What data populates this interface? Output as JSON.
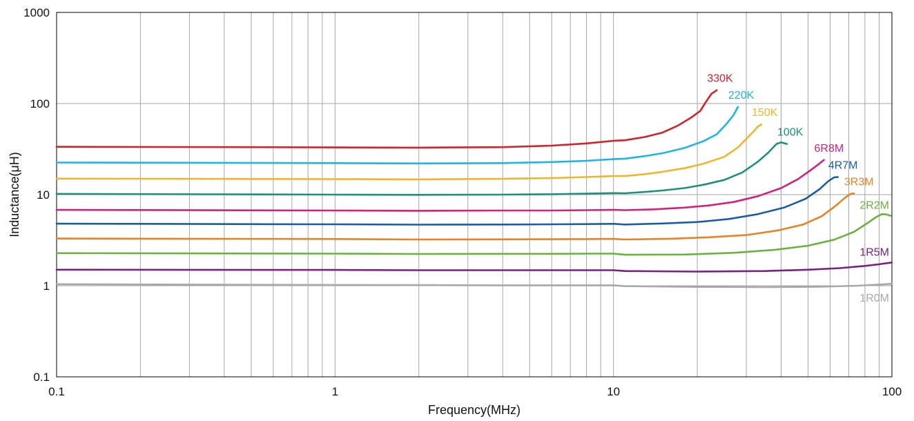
{
  "chart_data": {
    "type": "line",
    "title": "",
    "xlabel": "Frequency(MHz)",
    "ylabel": "Inductance(μH)",
    "xscale": "log",
    "yscale": "log",
    "xlim": [
      0.1,
      100
    ],
    "ylim": [
      0.1,
      1000
    ],
    "grid": true,
    "x_tick_labels": [
      "0.1",
      "1",
      "10",
      "100"
    ],
    "y_tick_labels": [
      "0.1",
      "1",
      "10",
      "100",
      "1000"
    ],
    "series": [
      {
        "name": "330K",
        "color": "#d42027",
        "points": [
          [
            0.1,
            33.5
          ],
          [
            0.5,
            33.2
          ],
          [
            1,
            33
          ],
          [
            2,
            32.8
          ],
          [
            4,
            33.2
          ],
          [
            6,
            34.5
          ],
          [
            8,
            36.5
          ],
          [
            10,
            39
          ],
          [
            11,
            39.5
          ],
          [
            13,
            43
          ],
          [
            15,
            48
          ],
          [
            17,
            57
          ],
          [
            19,
            70
          ],
          [
            20.5,
            83
          ],
          [
            21.5,
            105
          ],
          [
            22.5,
            128
          ],
          [
            23.5,
            140
          ]
        ]
      },
      {
        "name": "220K",
        "color": "#1cb5e8",
        "points": [
          [
            0.1,
            22.5
          ],
          [
            1,
            22.2
          ],
          [
            2,
            22
          ],
          [
            4,
            22.2
          ],
          [
            6,
            22.8
          ],
          [
            8,
            23.5
          ],
          [
            10,
            24.5
          ],
          [
            11,
            24.8
          ],
          [
            13,
            26.5
          ],
          [
            15,
            28.5
          ],
          [
            18,
            32.5
          ],
          [
            21,
            38.5
          ],
          [
            23.5,
            46
          ],
          [
            25.5,
            60
          ],
          [
            27,
            75
          ],
          [
            28,
            92
          ]
        ]
      },
      {
        "name": "150K",
        "color": "#f0b52a",
        "points": [
          [
            0.1,
            15
          ],
          [
            1,
            14.8
          ],
          [
            2,
            14.7
          ],
          [
            4,
            14.9
          ],
          [
            6,
            15.2
          ],
          [
            8,
            15.6
          ],
          [
            10,
            16
          ],
          [
            11,
            16
          ],
          [
            13,
            16.8
          ],
          [
            15,
            17.8
          ],
          [
            18,
            19.5
          ],
          [
            21,
            21.8
          ],
          [
            25,
            26
          ],
          [
            28,
            33
          ],
          [
            30,
            41
          ],
          [
            32,
            50
          ],
          [
            33,
            56
          ],
          [
            34,
            59
          ]
        ]
      },
      {
        "name": "100K",
        "color": "#1a9178",
        "points": [
          [
            0.1,
            10.2
          ],
          [
            1,
            10
          ],
          [
            2,
            9.95
          ],
          [
            4,
            10
          ],
          [
            6,
            10.1
          ],
          [
            8,
            10.25
          ],
          [
            10,
            10.4
          ],
          [
            11,
            10.35
          ],
          [
            13,
            10.7
          ],
          [
            15,
            11.1
          ],
          [
            18,
            11.8
          ],
          [
            21,
            12.8
          ],
          [
            25,
            14.5
          ],
          [
            29,
            17.5
          ],
          [
            33,
            23
          ],
          [
            36,
            29
          ],
          [
            38.5,
            36
          ],
          [
            40,
            37.5
          ],
          [
            42,
            36
          ]
        ]
      },
      {
        "name": "6R8M",
        "color": "#d4207a",
        "points": [
          [
            0.1,
            6.8
          ],
          [
            1,
            6.7
          ],
          [
            2,
            6.65
          ],
          [
            4,
            6.7
          ],
          [
            6,
            6.7
          ],
          [
            8,
            6.75
          ],
          [
            10,
            6.8
          ],
          [
            11,
            6.75
          ],
          [
            14,
            6.9
          ],
          [
            18,
            7.2
          ],
          [
            22,
            7.6
          ],
          [
            27,
            8.3
          ],
          [
            33,
            9.6
          ],
          [
            40,
            11.8
          ],
          [
            46,
            14.8
          ],
          [
            51,
            18.5
          ],
          [
            55,
            22
          ],
          [
            57,
            24
          ]
        ]
      },
      {
        "name": "4R7M",
        "color": "#1a5da6",
        "points": [
          [
            0.1,
            4.8
          ],
          [
            1,
            4.72
          ],
          [
            2,
            4.68
          ],
          [
            4,
            4.7
          ],
          [
            6,
            4.72
          ],
          [
            8,
            4.75
          ],
          [
            10,
            4.78
          ],
          [
            11,
            4.7
          ],
          [
            15,
            4.82
          ],
          [
            20,
            5
          ],
          [
            26,
            5.4
          ],
          [
            33,
            6.1
          ],
          [
            41,
            7.2
          ],
          [
            49,
            9
          ],
          [
            55,
            11.5
          ],
          [
            59,
            14
          ],
          [
            62,
            15.5
          ],
          [
            64,
            15.6
          ]
        ]
      },
      {
        "name": "3R3M",
        "color": "#e98222",
        "points": [
          [
            0.1,
            3.3
          ],
          [
            1,
            3.26
          ],
          [
            2,
            3.22
          ],
          [
            4,
            3.23
          ],
          [
            6,
            3.24
          ],
          [
            8,
            3.25
          ],
          [
            10,
            3.27
          ],
          [
            11,
            3.22
          ],
          [
            16,
            3.28
          ],
          [
            22,
            3.4
          ],
          [
            30,
            3.6
          ],
          [
            39,
            4.05
          ],
          [
            48,
            4.7
          ],
          [
            56,
            5.8
          ],
          [
            63,
            7.6
          ],
          [
            68,
            9.3
          ],
          [
            71,
            10.2
          ],
          [
            73,
            10.3
          ]
        ]
      },
      {
        "name": "2R2M",
        "color": "#6ab23c",
        "points": [
          [
            0.1,
            2.28
          ],
          [
            1,
            2.25
          ],
          [
            2,
            2.23
          ],
          [
            4,
            2.24
          ],
          [
            6,
            2.24
          ],
          [
            8,
            2.25
          ],
          [
            10,
            2.25
          ],
          [
            11,
            2.19
          ],
          [
            18,
            2.2
          ],
          [
            27,
            2.3
          ],
          [
            38,
            2.48
          ],
          [
            50,
            2.75
          ],
          [
            62,
            3.2
          ],
          [
            73,
            3.9
          ],
          [
            82,
            4.9
          ],
          [
            88,
            5.7
          ],
          [
            92,
            6.1
          ],
          [
            96,
            6.05
          ],
          [
            99,
            5.85
          ]
        ]
      },
      {
        "name": "1R5M",
        "color": "#7c1f83",
        "points": [
          [
            0.1,
            1.5
          ],
          [
            1,
            1.49
          ],
          [
            2,
            1.48
          ],
          [
            4,
            1.48
          ],
          [
            6,
            1.48
          ],
          [
            8,
            1.48
          ],
          [
            10,
            1.48
          ],
          [
            11,
            1.45
          ],
          [
            20,
            1.43
          ],
          [
            35,
            1.45
          ],
          [
            50,
            1.5
          ],
          [
            65,
            1.56
          ],
          [
            80,
            1.65
          ],
          [
            90,
            1.72
          ],
          [
            100,
            1.8
          ]
        ]
      },
      {
        "name": "1R0M",
        "color": "#a8a8a8",
        "points": [
          [
            0.1,
            1.04
          ],
          [
            1,
            1.02
          ],
          [
            2,
            1.015
          ],
          [
            4,
            1.01
          ],
          [
            6,
            1.01
          ],
          [
            8,
            1.01
          ],
          [
            10,
            1.01
          ],
          [
            11,
            0.99
          ],
          [
            20,
            0.97
          ],
          [
            35,
            0.965
          ],
          [
            55,
            0.975
          ],
          [
            75,
            1
          ],
          [
            90,
            1.03
          ],
          [
            100,
            1.05
          ]
        ]
      }
    ]
  }
}
